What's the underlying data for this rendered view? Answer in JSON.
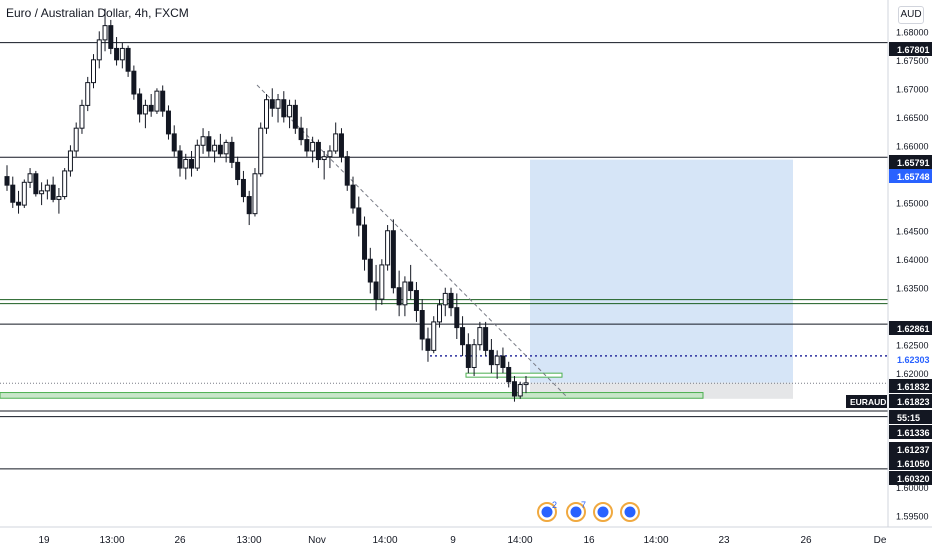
{
  "header": {
    "symbol_title": "Euro / Australian Dollar, 4h, FXCM",
    "currency_badge": "AUD"
  },
  "colors": {
    "candle": "#131722",
    "level_line": "#131722",
    "green_zone": "#4caf50",
    "target_zone": "#bbd4f2",
    "stop_zone": "#e2e3e5",
    "entry_dotted": "#2a2f9e",
    "label_blue": "#2962ff",
    "trend_dashed": "#787b86"
  },
  "price_axis": {
    "ticks": [
      "1.68000",
      "1.67500",
      "1.67000",
      "1.66500",
      "1.66000",
      "1.65500",
      "1.65000",
      "1.64500",
      "1.64000",
      "1.63500",
      "1.62500",
      "1.62000",
      "1.60000",
      "1.59500"
    ]
  },
  "price_labels": [
    {
      "value": "1.67801",
      "style": "dark"
    },
    {
      "value": "1.65791",
      "style": "dark"
    },
    {
      "value": "1.65748",
      "style": "blue"
    },
    {
      "value": "1.62861",
      "style": "dark"
    },
    {
      "value": "1.62303",
      "style": "blue"
    },
    {
      "value": "1.61832",
      "style": "dark"
    },
    {
      "value": "1.61823",
      "style": "dark"
    },
    {
      "value": "55:15",
      "style": "dark"
    },
    {
      "value": "1.61336",
      "style": "dark"
    },
    {
      "value": "1.61237",
      "style": "dark"
    },
    {
      "value": "1.61050",
      "style": "dark"
    },
    {
      "value": "1.60320",
      "style": "dark"
    }
  ],
  "symbol_tag": "EURAUD",
  "time_axis": {
    "labels": [
      "19",
      "13:00",
      "26",
      "13:00",
      "Nov",
      "14:00",
      "9",
      "14:00",
      "16",
      "14:00",
      "23",
      "26",
      "De"
    ]
  },
  "events": [
    {
      "icon": "economic-event-icon",
      "count": "2"
    },
    {
      "icon": "economic-event-icon",
      "count": "7"
    },
    {
      "icon": "economic-event-icon",
      "count": ""
    },
    {
      "icon": "economic-event-icon",
      "count": ""
    }
  ],
  "chart_data": {
    "type": "candlestick",
    "symbol": "EURAUD",
    "timeframe": "4h",
    "ylim": [
      1.593,
      1.6855
    ],
    "horizontal_levels": [
      1.67801,
      1.65791,
      1.6329,
      1.6322,
      1.62861,
      1.61336,
      1.61237,
      1.6032
    ],
    "long_position": {
      "entry": 1.61832,
      "target": 1.65748,
      "stop": 1.6155
    },
    "entry_level": 1.62303,
    "last_price": 1.61823,
    "candles_ohlc": [
      [
        1.6545,
        1.6565,
        1.652,
        1.653
      ],
      [
        1.653,
        1.6545,
        1.649,
        1.65
      ],
      [
        1.65,
        1.652,
        1.648,
        1.6495
      ],
      [
        1.6495,
        1.654,
        1.649,
        1.6535
      ],
      [
        1.6535,
        1.656,
        1.6525,
        1.655
      ],
      [
        1.655,
        1.6555,
        1.651,
        1.6515
      ],
      [
        1.6515,
        1.6535,
        1.6495,
        1.652
      ],
      [
        1.652,
        1.654,
        1.6505,
        1.653
      ],
      [
        1.653,
        1.6545,
        1.65,
        1.6505
      ],
      [
        1.6505,
        1.6525,
        1.648,
        1.651
      ],
      [
        1.651,
        1.656,
        1.6505,
        1.6555
      ],
      [
        1.6555,
        1.66,
        1.6545,
        1.659
      ],
      [
        1.659,
        1.664,
        1.658,
        1.663
      ],
      [
        1.663,
        1.668,
        1.662,
        1.667
      ],
      [
        1.667,
        1.672,
        1.666,
        1.671
      ],
      [
        1.671,
        1.676,
        1.67,
        1.675
      ],
      [
        1.675,
        1.68,
        1.6735,
        1.6785
      ],
      [
        1.6785,
        1.684,
        1.6765,
        1.681
      ],
      [
        1.681,
        1.682,
        1.676,
        1.677
      ],
      [
        1.677,
        1.679,
        1.674,
        1.675
      ],
      [
        1.675,
        1.678,
        1.6735,
        1.677
      ],
      [
        1.677,
        1.6775,
        1.672,
        1.673
      ],
      [
        1.673,
        1.674,
        1.668,
        1.669
      ],
      [
        1.669,
        1.67,
        1.664,
        1.6655
      ],
      [
        1.6655,
        1.668,
        1.663,
        1.667
      ],
      [
        1.667,
        1.669,
        1.665,
        1.666
      ],
      [
        1.666,
        1.67,
        1.6655,
        1.6695
      ],
      [
        1.6695,
        1.6705,
        1.665,
        1.666
      ],
      [
        1.666,
        1.667,
        1.661,
        1.662
      ],
      [
        1.662,
        1.6635,
        1.658,
        1.659
      ],
      [
        1.659,
        1.66,
        1.6545,
        1.656
      ],
      [
        1.656,
        1.6585,
        1.654,
        1.6575
      ],
      [
        1.6575,
        1.659,
        1.6545,
        1.656
      ],
      [
        1.656,
        1.661,
        1.6555,
        1.66
      ],
      [
        1.66,
        1.663,
        1.6585,
        1.6615
      ],
      [
        1.6615,
        1.6625,
        1.658,
        1.659
      ],
      [
        1.659,
        1.661,
        1.657,
        1.66
      ],
      [
        1.66,
        1.662,
        1.658,
        1.6585
      ],
      [
        1.6585,
        1.661,
        1.657,
        1.6605
      ],
      [
        1.6605,
        1.6615,
        1.656,
        1.657
      ],
      [
        1.657,
        1.658,
        1.653,
        1.654
      ],
      [
        1.654,
        1.6555,
        1.65,
        1.651
      ],
      [
        1.651,
        1.652,
        1.646,
        1.648
      ],
      [
        1.648,
        1.656,
        1.6475,
        1.655
      ],
      [
        1.655,
        1.664,
        1.6545,
        1.663
      ],
      [
        1.663,
        1.669,
        1.662,
        1.668
      ],
      [
        1.668,
        1.67,
        1.665,
        1.6665
      ],
      [
        1.6665,
        1.669,
        1.664,
        1.668
      ],
      [
        1.668,
        1.6695,
        1.664,
        1.665
      ],
      [
        1.665,
        1.668,
        1.663,
        1.667
      ],
      [
        1.667,
        1.668,
        1.662,
        1.663
      ],
      [
        1.663,
        1.665,
        1.66,
        1.661
      ],
      [
        1.661,
        1.663,
        1.658,
        1.659
      ],
      [
        1.659,
        1.6615,
        1.657,
        1.6605
      ],
      [
        1.6605,
        1.661,
        1.656,
        1.6575
      ],
      [
        1.6575,
        1.659,
        1.654,
        1.658
      ],
      [
        1.658,
        1.66,
        1.656,
        1.659
      ],
      [
        1.659,
        1.664,
        1.6585,
        1.662
      ],
      [
        1.662,
        1.663,
        1.657,
        1.658
      ],
      [
        1.658,
        1.659,
        1.652,
        1.653
      ],
      [
        1.653,
        1.6545,
        1.648,
        1.649
      ],
      [
        1.649,
        1.651,
        1.644,
        1.646
      ],
      [
        1.646,
        1.6475,
        1.638,
        1.64
      ],
      [
        1.64,
        1.642,
        1.634,
        1.636
      ],
      [
        1.636,
        1.639,
        1.631,
        1.633
      ],
      [
        1.633,
        1.64,
        1.632,
        1.639
      ],
      [
        1.639,
        1.646,
        1.638,
        1.645
      ],
      [
        1.645,
        1.647,
        1.634,
        1.635
      ],
      [
        1.635,
        1.638,
        1.63,
        1.632
      ],
      [
        1.632,
        1.637,
        1.63,
        1.636
      ],
      [
        1.636,
        1.639,
        1.633,
        1.6345
      ],
      [
        1.6345,
        1.636,
        1.629,
        1.631
      ],
      [
        1.631,
        1.633,
        1.624,
        1.626
      ],
      [
        1.626,
        1.628,
        1.622,
        1.624
      ],
      [
        1.624,
        1.63,
        1.6235,
        1.629
      ],
      [
        1.629,
        1.633,
        1.628,
        1.632
      ],
      [
        1.632,
        1.635,
        1.63,
        1.634
      ],
      [
        1.634,
        1.635,
        1.63,
        1.6315
      ],
      [
        1.6315,
        1.634,
        1.626,
        1.628
      ],
      [
        1.628,
        1.63,
        1.623,
        1.625
      ],
      [
        1.625,
        1.627,
        1.62,
        1.621
      ],
      [
        1.621,
        1.626,
        1.6195,
        1.625
      ],
      [
        1.625,
        1.629,
        1.624,
        1.628
      ],
      [
        1.628,
        1.629,
        1.623,
        1.624
      ],
      [
        1.624,
        1.626,
        1.62,
        1.6215
      ],
      [
        1.6215,
        1.624,
        1.619,
        1.623
      ],
      [
        1.623,
        1.6245,
        1.62,
        1.621
      ],
      [
        1.621,
        1.622,
        1.6175,
        1.6185
      ],
      [
        1.6185,
        1.6195,
        1.615,
        1.616
      ],
      [
        1.616,
        1.6185,
        1.6155,
        1.618
      ],
      [
        1.618,
        1.6195,
        1.6165,
        1.6183
      ]
    ]
  }
}
